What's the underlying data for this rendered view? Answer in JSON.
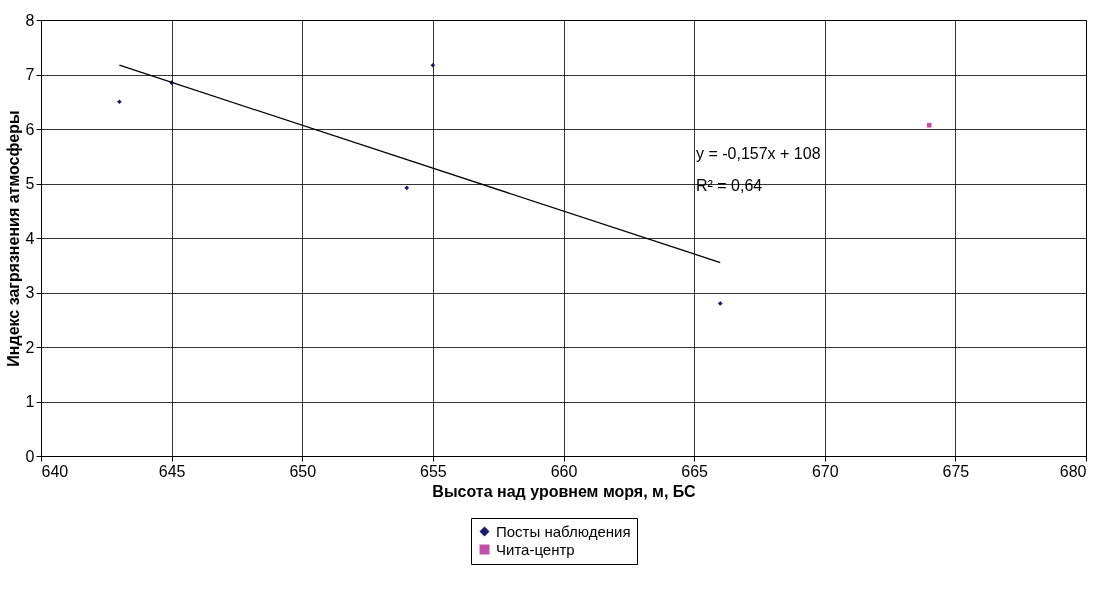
{
  "chart_data": {
    "type": "scatter",
    "xlabel": "Высота над уровнем моря, м, БС",
    "ylabel": "Индекс загрязнения атмосферы",
    "xlim": [
      640,
      680
    ],
    "xticks": [
      640,
      645,
      650,
      655,
      660,
      665,
      670,
      675,
      680
    ],
    "ylim": [
      0,
      8
    ],
    "yticks": [
      0,
      1,
      2,
      3,
      4,
      5,
      6,
      7,
      8
    ],
    "grid": true,
    "legend": "bottom",
    "series": [
      {
        "name": "Посты наблюдения",
        "marker": "diamond",
        "color": "#1a1a6e",
        "x": [
          643,
          645,
          654,
          655,
          666
        ],
        "values": [
          6.5,
          6.85,
          4.92,
          7.17,
          2.8
        ]
      },
      {
        "name": "Чита-центр",
        "marker": "square",
        "color": "#c050a8",
        "x": [
          674
        ],
        "values": [
          6.07
        ]
      },
      {
        "type": "line",
        "color": "#000000",
        "x": [
          643,
          666
        ],
        "values": [
          7.17,
          3.55
        ]
      }
    ],
    "annotations": [
      "y = -0,157x + 108",
      "R² = 0,64"
    ]
  }
}
